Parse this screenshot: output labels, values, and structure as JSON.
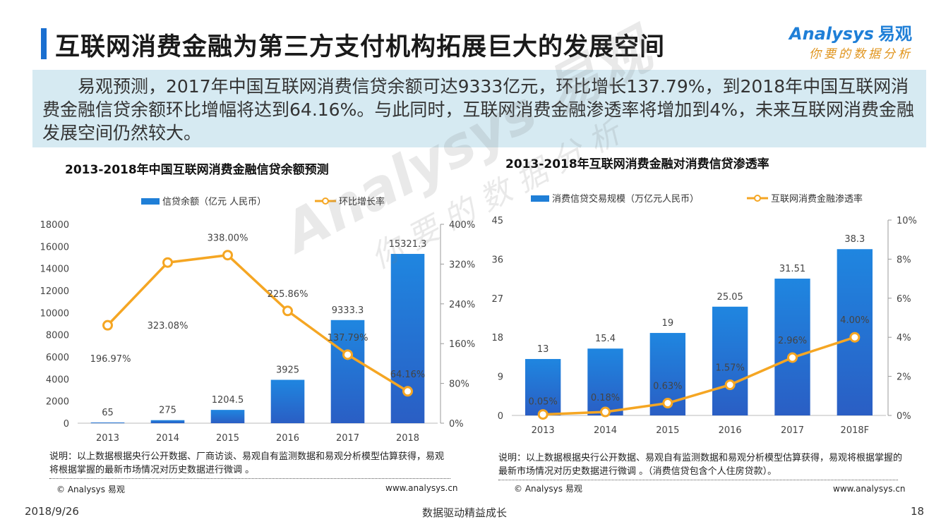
{
  "page": {
    "title": "互联网消费金融为第三方支付机构拓展巨大的发展空间",
    "logo_brand": "Analysys",
    "logo_cn": "易观",
    "logo_tagline": "你要的数据分析",
    "summary": "易观预测，2017年中国互联网消费信贷余额可达9333亿元，环比增长137.79%，到2018年中国互联网消费金融信贷余额环比增幅将达到64.16%。与此同时，互联网消费金融渗透率将增加到4%，未来互联网消费金融发展空间仍然较大。",
    "footer_date": "2018/9/26",
    "footer_center": "数据驱动精益成长",
    "footer_page": "18"
  },
  "left": {
    "chart_title": "2013-2018年中国互联网消费金融信贷余额预测",
    "note": "说明：以上数据根据央行公开数据、厂商访谈、易观自有监测数据和易观分析模型估算获得，易观将根据掌握的最新市场情况对历史数据进行微调 。",
    "copyright": "© Analysys 易观",
    "site": "www.analysys.cn"
  },
  "right": {
    "chart_title": "2013-2018年互联网消费金融对消费信贷渗透率",
    "note": "说明：以上数据根据央行公开数据、易观自有监测数据和易观分析模型估算获得，易观将根据掌握的最新市场情况对历史数据进行微调 。（消费信贷包含个人住房贷款）。",
    "copyright": "© Analysys 易观",
    "site": "www.analysys.cn"
  },
  "watermark": {
    "brand": "Analysys 易观",
    "tagline": "你要的数据分析"
  },
  "chart_data": [
    {
      "type": "bar",
      "categories": [
        "2013",
        "2014",
        "2015",
        "2016",
        "2017",
        "2018"
      ],
      "series": [
        {
          "name": "信贷余额（亿元 人民币）",
          "values": [
            65,
            275,
            1204.5,
            3925,
            9333.3,
            15321.3
          ],
          "value_labels": [
            "65",
            "275",
            "1204.5",
            "3925",
            "9333.3",
            "15321.3"
          ],
          "axis": "left",
          "color": "#1f7fd7"
        },
        {
          "name": "环比增长率",
          "type": "line",
          "values": [
            196.97,
            323.08,
            338.0,
            225.86,
            137.79,
            64.16
          ],
          "value_labels": [
            "196.97%",
            "323.08%",
            "338.00%",
            "225.86%",
            "137.79%",
            "64.16%"
          ],
          "axis": "right",
          "color": "#f5a623"
        }
      ],
      "y_left": {
        "min": 0,
        "max": 18000,
        "ticks": [
          0,
          2000,
          4000,
          6000,
          8000,
          10000,
          12000,
          14000,
          16000,
          18000
        ],
        "tick_labels": [
          "0",
          "2000",
          "4000",
          "6000",
          "8000",
          "10000",
          "12000",
          "14000",
          "16000",
          "18000"
        ]
      },
      "y_right": {
        "min": 0,
        "max": 400,
        "ticks": [
          0,
          80,
          160,
          240,
          320,
          400
        ],
        "tick_labels": [
          "0%",
          "80%",
          "160%",
          "240%",
          "320%",
          "400%"
        ]
      },
      "grid": false,
      "legend": "top"
    },
    {
      "type": "bar",
      "categories": [
        "2013",
        "2014",
        "2015",
        "2016",
        "2017",
        "2018F"
      ],
      "series": [
        {
          "name": "消费信贷交易规模（万亿元人民币）",
          "values": [
            13,
            15.4,
            19,
            25.05,
            31.51,
            38.3
          ],
          "value_labels": [
            "13",
            "15.4",
            "19",
            "25.05",
            "31.51",
            "38.3"
          ],
          "axis": "left",
          "color": "#1f7fd7"
        },
        {
          "name": "互联网消费金融渗透率",
          "type": "line",
          "values": [
            0.05,
            0.18,
            0.63,
            1.57,
            2.96,
            4.0
          ],
          "value_labels": [
            "0.05%",
            "0.18%",
            "0.63%",
            "1.57%",
            "2.96%",
            "4.00%"
          ],
          "axis": "right",
          "color": "#f5a623"
        }
      ],
      "y_left": {
        "min": 0,
        "max": 45,
        "ticks": [
          0,
          9,
          18,
          27,
          36,
          45
        ],
        "tick_labels": [
          "0",
          "9",
          "18",
          "27",
          "36",
          "45"
        ]
      },
      "y_right": {
        "min": 0,
        "max": 10,
        "ticks": [
          0,
          2,
          4,
          6,
          8,
          10
        ],
        "tick_labels": [
          "0%",
          "2%",
          "4%",
          "6%",
          "8%",
          "10%"
        ]
      },
      "grid": false,
      "legend": "top"
    }
  ]
}
